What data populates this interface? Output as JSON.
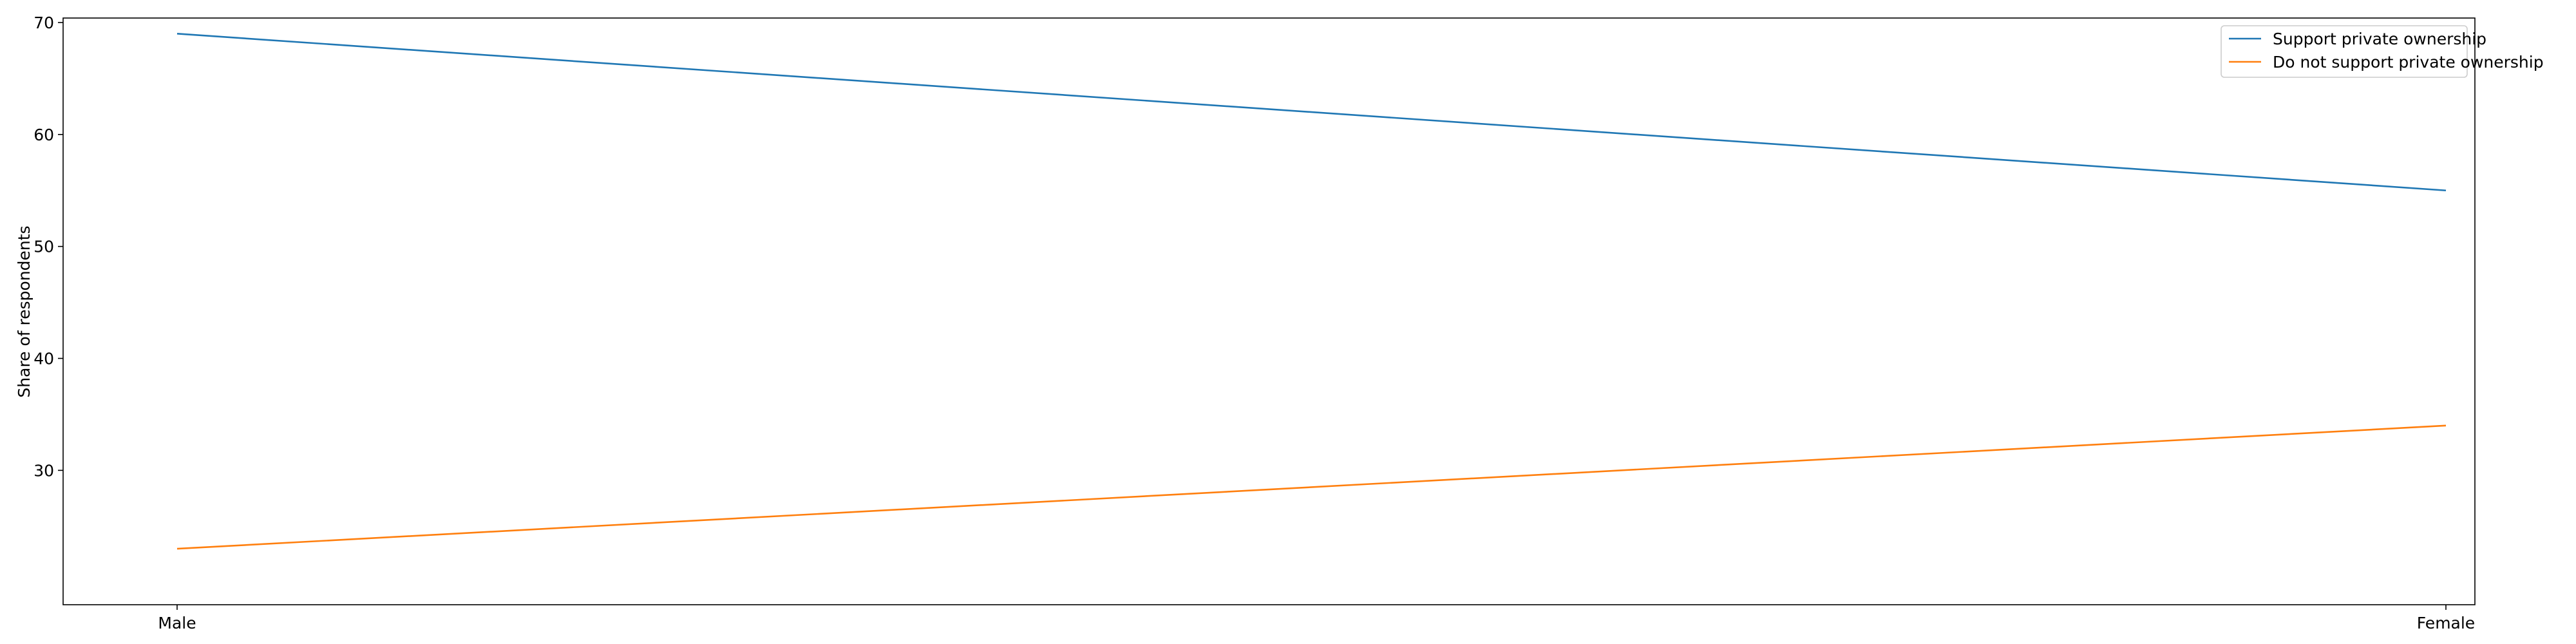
{
  "chart_data": {
    "type": "line",
    "categories": [
      "Male",
      "Female"
    ],
    "series": [
      {
        "name": "Support private ownership",
        "values": [
          69,
          55
        ],
        "color": "#1f77b4"
      },
      {
        "name": "Do not support private ownership",
        "values": [
          23,
          34
        ],
        "color": "#ff7f0e"
      }
    ],
    "ylabel": "Share of respondents",
    "xlabel": "",
    "yticks": [
      30,
      40,
      50,
      60,
      70
    ],
    "ylim": [
      18,
      70.4
    ],
    "legend_position": "top-right",
    "grid": false
  }
}
